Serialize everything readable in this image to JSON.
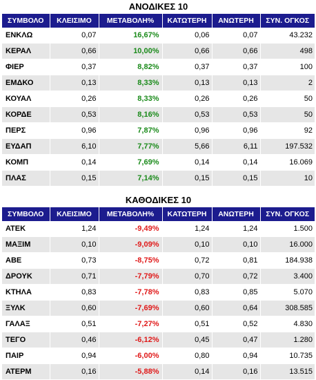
{
  "gainers": {
    "title": "ΑΝΟΔΙΚΕΣ 10",
    "headers": [
      "ΣΥΜΒΟΛΟ",
      "ΚΛΕΙΣΙΜΟ",
      "ΜΕΤΑΒΟΛΗ%",
      "ΚΑΤΩΤΕΡΗ",
      "ΑΝΩΤΕΡΗ",
      "ΣΥΝ. ΟΓΚΟΣ"
    ],
    "rows": [
      [
        "ΕΝΚΛΩ",
        "0,07",
        "16,67%",
        "0,06",
        "0,07",
        "43.232"
      ],
      [
        "ΚΕΡΑΛ",
        "0,66",
        "10,00%",
        "0,66",
        "0,66",
        "498"
      ],
      [
        "ΦΙΕΡ",
        "0,37",
        "8,82%",
        "0,37",
        "0,37",
        "100"
      ],
      [
        "ΕΜΔΚΟ",
        "0,13",
        "8,33%",
        "0,13",
        "0,13",
        "2"
      ],
      [
        "ΚΟΥΑΛ",
        "0,26",
        "8,33%",
        "0,26",
        "0,26",
        "50"
      ],
      [
        "ΚΟΡΔΕ",
        "0,53",
        "8,16%",
        "0,53",
        "0,53",
        "50"
      ],
      [
        "ΠΕΡΣ",
        "0,96",
        "7,87%",
        "0,96",
        "0,96",
        "92"
      ],
      [
        "ΕΥΔΑΠ",
        "6,10",
        "7,77%",
        "5,66",
        "6,11",
        "197.532"
      ],
      [
        "ΚΟΜΠ",
        "0,14",
        "7,69%",
        "0,14",
        "0,14",
        "16.069"
      ],
      [
        "ΠΛΑΣ",
        "0,15",
        "7,14%",
        "0,15",
        "0,15",
        "10"
      ]
    ],
    "change_color": "#1a8a1a"
  },
  "losers": {
    "title": "ΚΑΘΟΔΙΚΕΣ 10",
    "headers": [
      "ΣΥΜΒΟΛΟ",
      "ΚΛΕΙΣΙΜΟ",
      "ΜΕΤΑΒΟΛΗ%",
      "ΚΑΤΩΤΕΡΗ",
      "ΑΝΩΤΕΡΗ",
      "ΣΥΝ. ΟΓΚΟΣ"
    ],
    "rows": [
      [
        "ΑΤΕΚ",
        "1,24",
        "-9,49%",
        "1,24",
        "1,24",
        "1.500"
      ],
      [
        "ΜΑΞΙΜ",
        "0,10",
        "-9,09%",
        "0,10",
        "0,10",
        "16.000"
      ],
      [
        "ΑΒΕ",
        "0,73",
        "-8,75%",
        "0,72",
        "0,81",
        "184.938"
      ],
      [
        "ΔΡΟΥΚ",
        "0,71",
        "-7,79%",
        "0,70",
        "0,72",
        "3.400"
      ],
      [
        "ΚΤΗΛΑ",
        "0,83",
        "-7,78%",
        "0,83",
        "0,85",
        "5.070"
      ],
      [
        "ΞΥΛΚ",
        "0,60",
        "-7,69%",
        "0,60",
        "0,64",
        "308.585"
      ],
      [
        "ΓΑΛΑΞ",
        "0,51",
        "-7,27%",
        "0,51",
        "0,52",
        "4.830"
      ],
      [
        "ΤΕΓΟ",
        "0,46",
        "-6,12%",
        "0,45",
        "0,47",
        "1.280"
      ],
      [
        "ΠΑΙΡ",
        "0,94",
        "-6,00%",
        "0,80",
        "0,94",
        "10.735"
      ],
      [
        "ΑΤΕΡΜ",
        "0,16",
        "-5,88%",
        "0,14",
        "0,16",
        "13.515"
      ]
    ],
    "change_color": "#e01818"
  },
  "colors": {
    "header_bg": "#1c1c8e",
    "header_text": "#ffffff",
    "row_alt": "#e6e6e6"
  }
}
